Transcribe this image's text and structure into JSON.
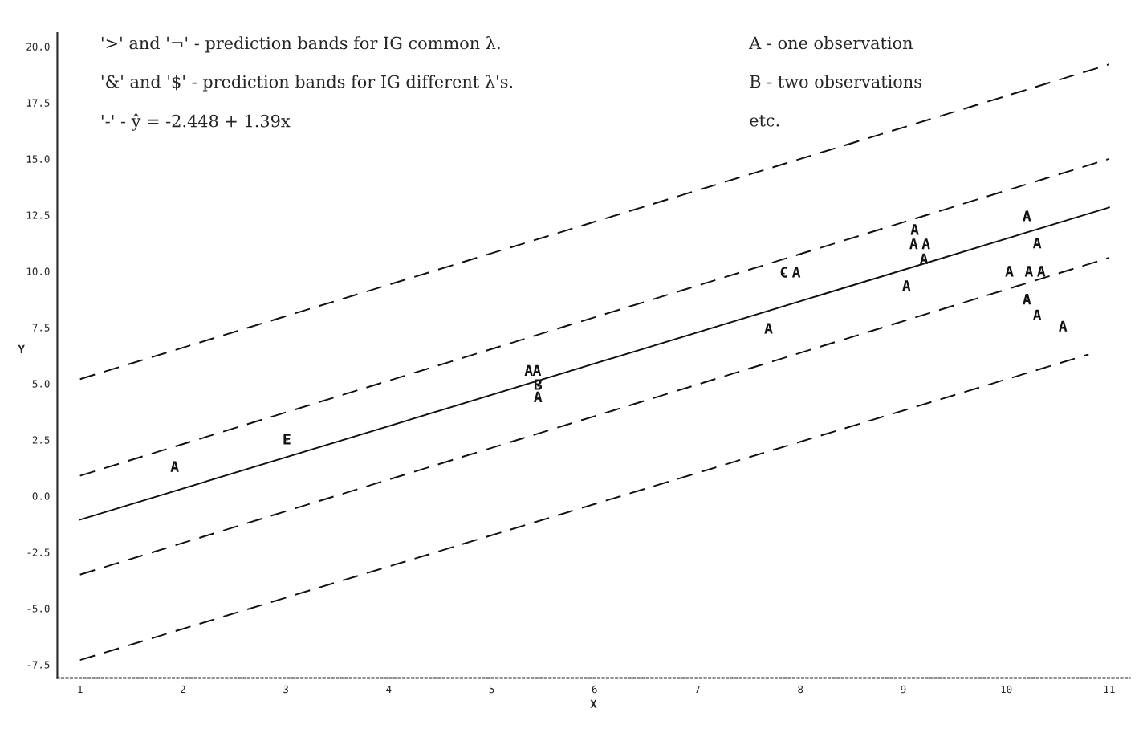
{
  "chart_data": {
    "type": "scatter",
    "xlabel": "X",
    "ylabel": "Y",
    "xlim": [
      0.78,
      11.2
    ],
    "ylim": [
      -8.1,
      20.6
    ],
    "xticks": [
      1,
      2,
      3,
      4,
      5,
      6,
      7,
      8,
      9,
      10,
      11
    ],
    "yticks": [
      {
        "value": -7.5,
        "label": "-7.5"
      },
      {
        "value": -5,
        "label": "-5.0"
      },
      {
        "value": -2.5,
        "label": "-2.5"
      },
      {
        "value": 0,
        "label": "0.0"
      },
      {
        "value": 2.5,
        "label": "2.5"
      },
      {
        "value": 5,
        "label": "5.0"
      },
      {
        "value": 7.5,
        "label": "7.5"
      },
      {
        "value": 10,
        "label": "10.0"
      },
      {
        "value": 12.5,
        "label": "12.5"
      },
      {
        "value": 15,
        "label": "15.0"
      },
      {
        "value": 17.5,
        "label": "17.5"
      },
      {
        "value": 20,
        "label": "20.0"
      }
    ],
    "grid": false,
    "legend": false,
    "annotations": [
      "'>' and '¬' - prediction bands for IG common λ.",
      "'&' and '$' - prediction bands for IG different λ's.",
      "'-' - ŷ = -2.448 + 1.39x",
      "A - one observation",
      "B - two observations",
      "etc."
    ],
    "series": [
      {
        "color": "#111111",
        "x": [
          1.92,
          3.01,
          5.36,
          5.44,
          5.45,
          5.45,
          7.69,
          7.84,
          7.96,
          9.11,
          9.1,
          9.22,
          9.2,
          9.03,
          10.03,
          10.22,
          10.34,
          10.2,
          10.3,
          10.2,
          10.3,
          10.55
        ],
        "values": [
          1.25,
          2.47,
          5.53,
          5.53,
          4.9,
          4.35,
          7.4,
          9.9,
          9.9,
          11.8,
          11.16,
          11.16,
          10.5,
          9.3,
          9.94,
          9.94,
          9.94,
          12.4,
          11.2,
          8.7,
          8.0,
          7.5
        ],
        "value_labels": [
          "A",
          "E",
          "A",
          "A",
          "B",
          "A",
          "A",
          "C",
          "A",
          "A",
          "A",
          "A",
          "A",
          "A",
          "A",
          "A",
          "A",
          "A",
          "A",
          "A",
          "A",
          "A"
        ]
      },
      {
        "type": "line",
        "color": "#111111",
        "line_style": "solid",
        "x": [
          1,
          11
        ],
        "values": [
          -1.06,
          12.84
        ]
      },
      {
        "type": "line",
        "color": "#111111",
        "line_style": "dashed",
        "x": [
          1,
          11
        ],
        "values": [
          5.2,
          19.2
        ]
      },
      {
        "type": "line",
        "color": "#111111",
        "line_style": "dashed",
        "x": [
          1,
          11
        ],
        "values": [
          0.9,
          15.0
        ]
      },
      {
        "type": "line",
        "color": "#111111",
        "line_style": "dashed",
        "x": [
          1,
          11
        ],
        "values": [
          -3.5,
          10.6
        ]
      },
      {
        "type": "line",
        "color": "#111111",
        "line_style": "dashed",
        "x": [
          1,
          10.8
        ],
        "values": [
          -7.3,
          6.3
        ]
      }
    ]
  }
}
